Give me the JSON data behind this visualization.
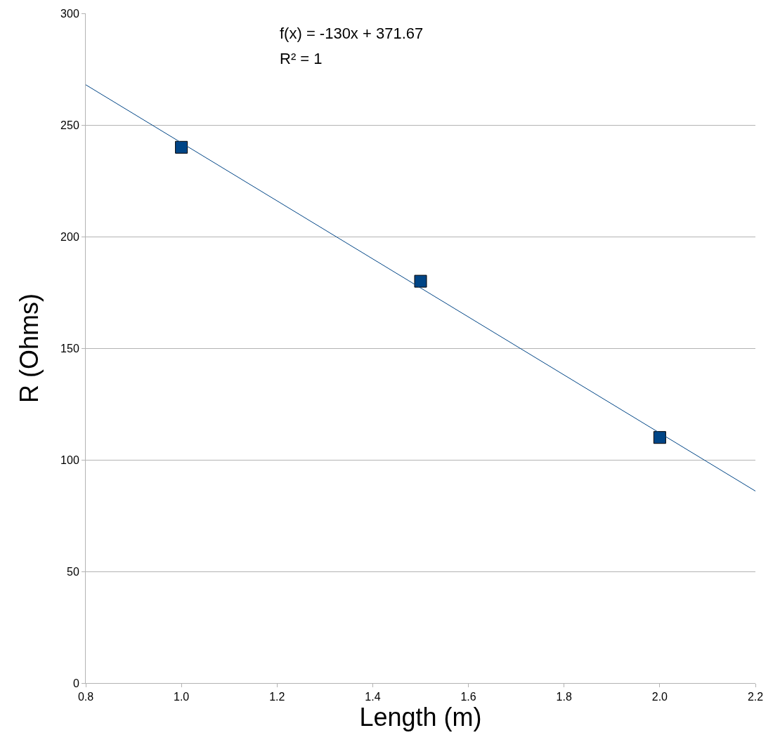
{
  "chart_data": {
    "type": "scatter",
    "xlabel": "Length (m)",
    "ylabel": "R (Ohms)",
    "annotations": [
      "f(x) = -130x + 371.67",
      "R² = 1"
    ],
    "series": [
      {
        "color": "#004586",
        "marker": "square",
        "x": [
          1.0,
          1.5,
          2.0
        ],
        "values": [
          240,
          180,
          110
        ]
      },
      {
        "type": "line",
        "color": "#004586",
        "marker": "none",
        "line_style": "solid",
        "x": [
          0.8,
          2.2
        ],
        "values": [
          268,
          86
        ]
      }
    ],
    "xlim": [
      0.8,
      2.2
    ],
    "xticks": [
      0.8,
      {
        "value": 1,
        "label": "1.0"
      },
      1.2,
      1.4,
      1.6,
      1.8,
      {
        "value": 2,
        "label": "2.0"
      },
      2.2
    ],
    "ylim": [
      0,
      300
    ],
    "yticks": [
      0,
      50,
      100,
      150,
      200,
      250,
      300
    ],
    "grid": "y"
  }
}
